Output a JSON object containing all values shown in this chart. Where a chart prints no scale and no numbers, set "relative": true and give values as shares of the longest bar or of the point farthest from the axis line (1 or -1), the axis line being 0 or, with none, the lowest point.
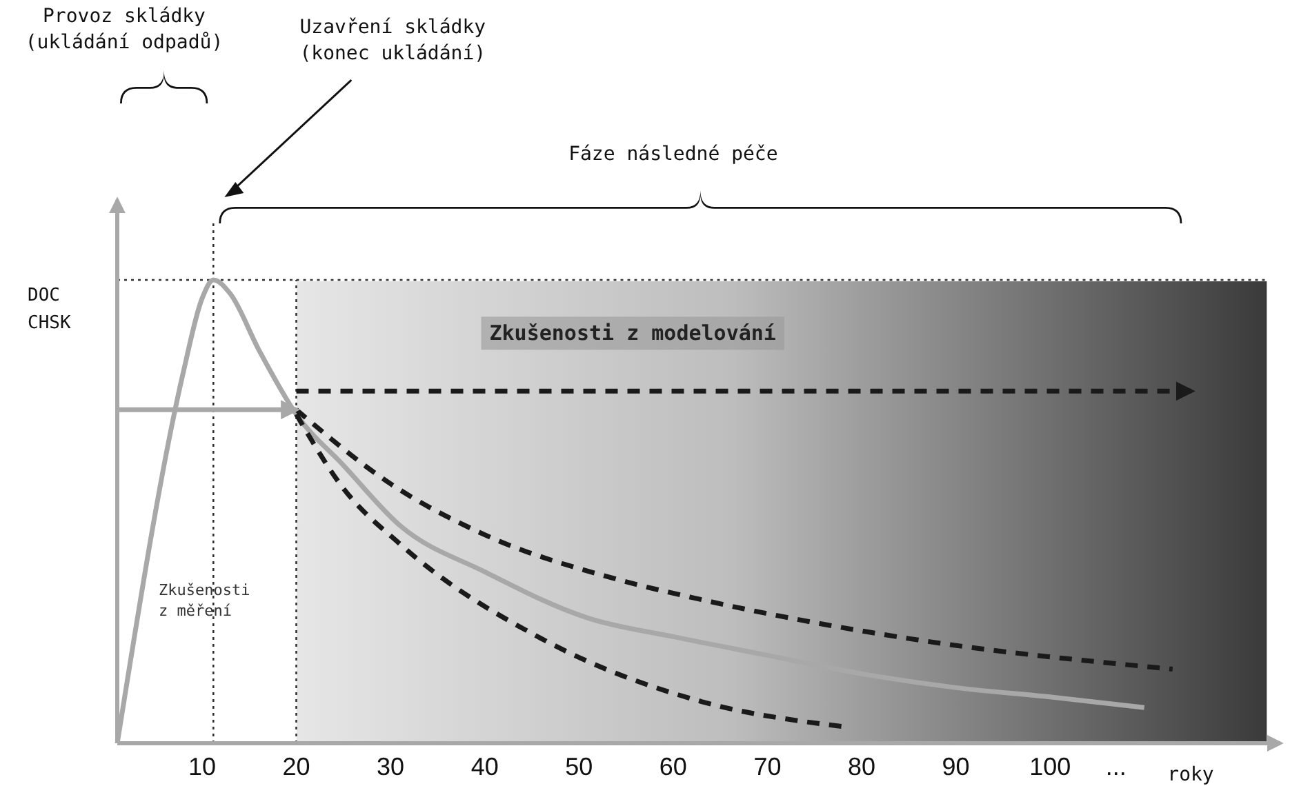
{
  "chart_data": {
    "type": "line",
    "relative": true,
    "xlabel": "roky",
    "ylabel": "DOC\nCHSK",
    "xlim": [
      1,
      124
    ],
    "xticks": [
      10,
      20,
      30,
      40,
      50,
      60,
      70,
      80,
      90,
      100,
      {
        "value": 107,
        "label": "..."
      }
    ],
    "marker": "none",
    "tick_labels": "x",
    "series": [
      {
        "color": "#a8a8a8",
        "line_style": "solid",
        "x": [
          1,
          8,
          10,
          11.2,
          13,
          16,
          20,
          25,
          31,
          40,
          51,
          60,
          70,
          80,
          90,
          100,
          110
        ],
        "values": [
          0,
          0.8,
          0.96,
          1,
          0.97,
          0.85,
          0.71,
          0.6,
          0.47,
          0.37,
          0.27,
          0.23,
          0.19,
          0.15,
          0.12,
          0.1,
          0.077
        ]
      },
      {
        "color": "#1a1a1a",
        "line_style": "dashed",
        "x": [
          20,
          30,
          40,
          54,
          63,
          85,
          113
        ],
        "values": [
          0.72,
          0.56,
          0.45,
          0.354,
          0.31,
          0.226,
          0.16
        ]
      },
      {
        "color": "#1a1a1a",
        "line_style": "dashed",
        "x": [
          20,
          25,
          31,
          46,
          63,
          78
        ],
        "values": [
          0.71,
          0.55,
          0.43,
          0.226,
          0.09,
          0.036
        ]
      },
      {
        "color": "#1a1a1a",
        "line_style": "dashed",
        "x": [
          20,
          115
        ],
        "values": [
          0.76,
          0.76
        ]
      },
      {
        "color": "#a8a8a8",
        "line_style": "solid",
        "x": [
          1,
          20
        ],
        "values": [
          0.72,
          0.72
        ]
      }
    ],
    "ref_lines": [
      {
        "axis": "x",
        "value": 11.2,
        "line_style": "dotted",
        "color": "#333333"
      },
      {
        "axis": "x",
        "value": 20,
        "line_style": "dotted",
        "color": "#333333"
      }
    ],
    "bands": [
      {
        "axis": "x",
        "from": 20,
        "to": 123,
        "label": "Zkušenosti z modelování",
        "color": "#3a3a3a"
      },
      {
        "axis": "x",
        "from": 1,
        "to": 20,
        "label": "Zkušenosti z měření",
        "color": "#ffffff"
      }
    ],
    "annotations": [
      "Provoz skládky\n(ukládání odpadů)",
      "Uzavření skládky\n(konec ukládání)",
      "Fáze následné péče"
    ]
  }
}
